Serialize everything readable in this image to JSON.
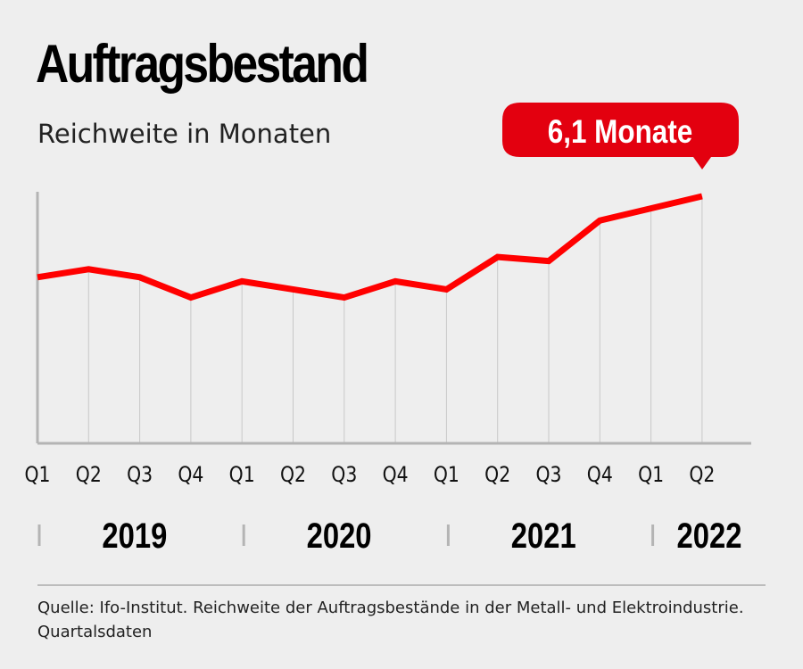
{
  "chart_data": {
    "type": "line",
    "title": "Auftragsbestand",
    "subtitle": "Reichweite in Monaten",
    "categories": [
      "Q1",
      "Q2",
      "Q3",
      "Q4",
      "Q1",
      "Q2",
      "Q3",
      "Q4",
      "Q1",
      "Q2",
      "Q3",
      "Q4",
      "Q1",
      "Q2"
    ],
    "years": [
      {
        "label": "2019",
        "quarters": 4
      },
      {
        "label": "2020",
        "quarters": 4
      },
      {
        "label": "2021",
        "quarters": 4
      },
      {
        "label": "2022",
        "quarters": 2
      }
    ],
    "values": [
      4.1,
      4.3,
      4.1,
      3.6,
      4.0,
      3.8,
      3.6,
      4.0,
      3.8,
      4.6,
      4.5,
      5.5,
      5.8,
      6.1
    ],
    "ylim": [
      0,
      6.1
    ],
    "grid": "vertical",
    "annotation": {
      "text": "6,1 Monate",
      "index": 13
    },
    "colors": {
      "line": "#ff0000",
      "callout": "#e3000f",
      "grid": "#c8c8c8",
      "axis": "#b4b4b4",
      "background": "#eeeeee"
    }
  },
  "source": "Quelle: Ifo-Institut. Reichweite der Auftragsbestände in der Metall- und Elektroindustrie. Quartalsdaten"
}
